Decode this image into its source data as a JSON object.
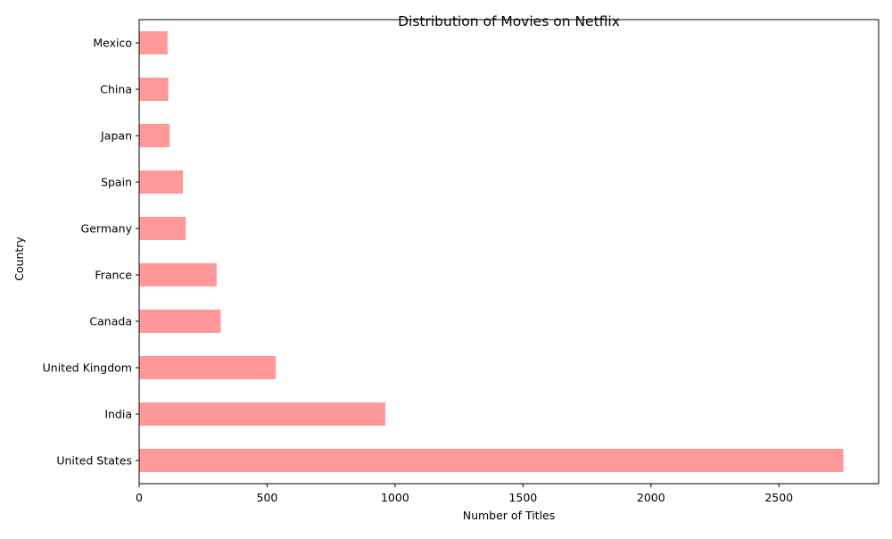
{
  "chart_data": {
    "type": "bar",
    "orientation": "horizontal",
    "title": "Distribution of Movies on Netflix",
    "xlabel": "Number of Titles",
    "ylabel": "Country",
    "categories": [
      "United States",
      "India",
      "United Kingdom",
      "Canada",
      "France",
      "Germany",
      "Spain",
      "Japan",
      "China",
      "Mexico"
    ],
    "values": [
      2752,
      962,
      534,
      319,
      303,
      182,
      171,
      119,
      114,
      111
    ],
    "xlim": [
      0,
      2889.6
    ],
    "xticks": [
      0,
      500,
      1000,
      1500,
      2000,
      2500
    ],
    "xtick_labels": [
      "0",
      "500",
      "1000",
      "1500",
      "2000",
      "2500"
    ],
    "grid": false,
    "legend": "none",
    "bar_color": "#ff9999"
  }
}
